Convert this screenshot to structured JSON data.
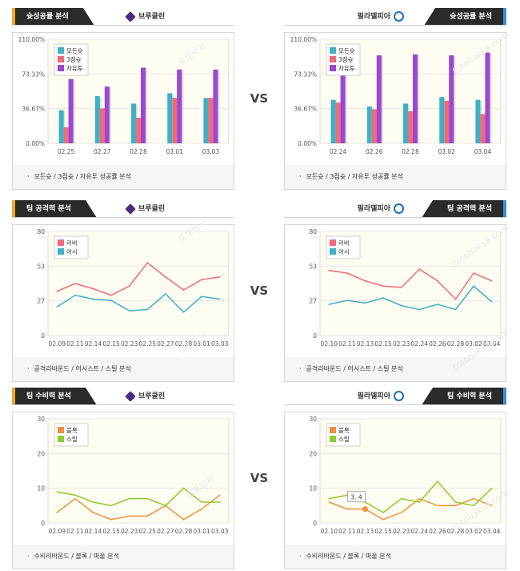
{
  "vs_label": "VS",
  "watermark": [
    "토토박사",
    "totobaksa.com"
  ],
  "rows": [
    {
      "left": {
        "tab": "슛성공률 분석",
        "team": "브루클린",
        "logo": "nets-logo",
        "footer": "모든슛 / 3점슛 / 자유투 성공률 분석",
        "chart_data": {
          "type": "bar",
          "categories": [
            "02.25",
            "02.27",
            "02.28",
            "03.01",
            "03.03"
          ],
          "yticks": [
            "0.00%",
            "36.67%",
            "73.33%",
            "110.00%"
          ],
          "ylim": [
            0,
            110
          ],
          "series": [
            {
              "name": "모든슛",
              "color": "#3fb1c4",
              "values": [
                35,
                50,
                42,
                53,
                48
              ]
            },
            {
              "name": "3점슛",
              "color": "#ee6b7a",
              "values": [
                17,
                37,
                27,
                48,
                48
              ]
            },
            {
              "name": "자유투",
              "color": "#9c47d1",
              "values": [
                68,
                60,
                80,
                78,
                78
              ]
            }
          ]
        }
      },
      "right": {
        "tab": "슛성공률 분석",
        "team": "필라델피아",
        "logo": "76ers-logo",
        "footer": "모든슛 / 3점슛 / 자유투 성공률 분석",
        "chart_data": {
          "type": "bar",
          "categories": [
            "02.24",
            "02.26",
            "02.28",
            "03.02",
            "03.04"
          ],
          "yticks": [
            "0.00%",
            "36.67%",
            "73.33%",
            "110.00%"
          ],
          "ylim": [
            0,
            110
          ],
          "series": [
            {
              "name": "모든슛",
              "color": "#3fb1c4",
              "values": [
                46,
                39,
                42,
                49,
                46
              ]
            },
            {
              "name": "3점슛",
              "color": "#ee6b7a",
              "values": [
                43,
                36,
                34,
                45,
                31
              ]
            },
            {
              "name": "자유투",
              "color": "#9c47d1",
              "values": [
                72,
                93,
                94,
                93,
                96
              ]
            }
          ]
        }
      }
    },
    {
      "left": {
        "tab": "팀 공격력 분석",
        "team": "브루클린",
        "logo": "nets-logo",
        "footer": "공격리바운드 / 어시스트 / 스틸 분석",
        "chart_data": {
          "type": "line",
          "categories": [
            "02.09",
            "02.11",
            "02.14",
            "02.15",
            "02.23",
            "02.25",
            "02.27",
            "02.28",
            "03.01",
            "03.03"
          ],
          "yticks": [
            "0",
            "27",
            "53",
            "80"
          ],
          "ylim": [
            0,
            80
          ],
          "series": [
            {
              "name": "리바",
              "color": "#ee6b7a",
              "values": [
                34,
                40,
                36,
                31,
                38,
                56,
                45,
                35,
                43,
                45
              ]
            },
            {
              "name": "어시",
              "color": "#3fb1c4",
              "values": [
                22,
                31,
                28,
                27,
                19,
                20,
                32,
                18,
                30,
                28
              ]
            }
          ]
        }
      },
      "right": {
        "tab": "팀 공격력 분석",
        "team": "필라델피아",
        "logo": "76ers-logo",
        "footer": "공격리바운드 / 어시스트 / 스틸 분석",
        "chart_data": {
          "type": "line",
          "categories": [
            "02.10",
            "02.11",
            "02.13",
            "02.15",
            "02.23",
            "02.24",
            "02.26",
            "02.28",
            "03.02",
            "03.04"
          ],
          "yticks": [
            "0",
            "27",
            "53",
            "80"
          ],
          "ylim": [
            0,
            80
          ],
          "series": [
            {
              "name": "리바",
              "color": "#ee6b7a",
              "values": [
                50,
                48,
                42,
                38,
                37,
                51,
                42,
                28,
                48,
                42
              ]
            },
            {
              "name": "어시",
              "color": "#3fb1c4",
              "values": [
                24,
                27,
                25,
                29,
                23,
                20,
                24,
                20,
                38,
                26
              ]
            }
          ]
        }
      }
    },
    {
      "left": {
        "tab": "팀 수비력 분석",
        "team": "브루클린",
        "logo": "nets-logo",
        "footer": "수비리바운드 / 블록 / 파울 분석",
        "chart_data": {
          "type": "line",
          "categories": [
            "02.09",
            "02.11",
            "02.14",
            "02.15",
            "02.23",
            "02.25",
            "02.27",
            "02.28",
            "03.01",
            "03.03"
          ],
          "yticks": [
            "0",
            "10",
            "20",
            "30"
          ],
          "ylim": [
            0,
            30
          ],
          "series": [
            {
              "name": "블록",
              "color": "#f0913c",
              "values": [
                3,
                7,
                3,
                1,
                2,
                2,
                5,
                1,
                4,
                8
              ]
            },
            {
              "name": "스틸",
              "color": "#8ccc2c",
              "values": [
                9,
                8,
                6,
                5,
                7,
                7,
                5,
                10,
                6,
                6
              ]
            }
          ]
        }
      },
      "right": {
        "tab": "팀 수비력 분석",
        "team": "필라델피아",
        "logo": "76ers-logo",
        "footer": "수비리바운드 / 블록 / 파울 분석",
        "tooltip": "3, 4",
        "chart_data": {
          "type": "line",
          "categories": [
            "02.10",
            "02.11",
            "02.13",
            "02.15",
            "02.23",
            "02.24",
            "02.26",
            "02.28",
            "03.02",
            "03.04"
          ],
          "yticks": [
            "0",
            "10",
            "20",
            "30"
          ],
          "ylim": [
            0,
            30
          ],
          "series": [
            {
              "name": "블록",
              "color": "#f0913c",
              "values": [
                6,
                4,
                4,
                1,
                3,
                7,
                5,
                5,
                7,
                5
              ]
            },
            {
              "name": "스틸",
              "color": "#8ccc2c",
              "values": [
                7,
                8,
                6,
                3,
                7,
                6,
                12,
                6,
                5,
                10
              ]
            }
          ]
        }
      }
    }
  ]
}
